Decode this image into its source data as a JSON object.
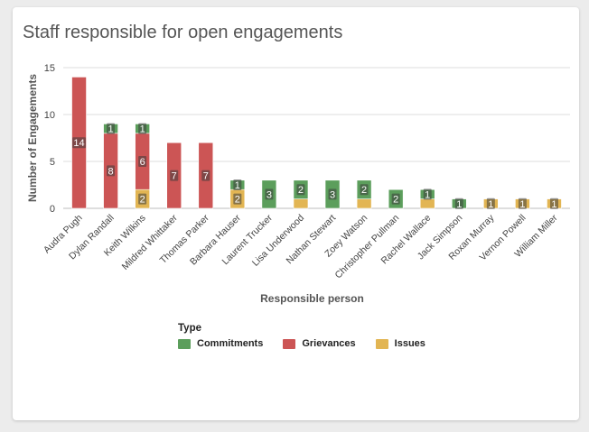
{
  "title": "Staff responsible for open engagements",
  "legend": {
    "title": "Type",
    "items": [
      {
        "label": "Commitments",
        "color": "#5c9e5c"
      },
      {
        "label": "Grievances",
        "color": "#cc5555"
      },
      {
        "label": "Issues",
        "color": "#e2b553"
      }
    ]
  },
  "chart_data": {
    "type": "bar",
    "stacked": true,
    "title": "Staff responsible for open engagements",
    "xlabel": "Responsible person",
    "ylabel": "Number of Engagements",
    "ylim": [
      0,
      15
    ],
    "yticks": [
      0,
      5,
      10,
      15
    ],
    "grid": true,
    "legend_position": "bottom",
    "categories": [
      "Audra Pugh",
      "Dylan Randall",
      "Keith Wilkins",
      "Mildred Whittaker",
      "Thomas Parker",
      "Barbara Hauser",
      "Laurent Trucker",
      "Lisa Underwood",
      "Nathan Stewart",
      "Zoey Watson",
      "Christopher Pullman",
      "Rachel Wallace",
      "Jack Simpson",
      "Roxan Murray",
      "Vernon Powell",
      "William Miller"
    ],
    "series": [
      {
        "name": "Issues",
        "color": "#e2b553",
        "values": [
          0,
          0,
          2,
          0,
          0,
          2,
          0,
          1,
          0,
          1,
          0,
          1,
          0,
          1,
          1,
          1
        ]
      },
      {
        "name": "Grievances",
        "color": "#cc5555",
        "values": [
          14,
          8,
          6,
          7,
          7,
          0,
          0,
          0,
          0,
          0,
          0,
          0,
          0,
          0,
          0,
          0
        ]
      },
      {
        "name": "Commitments",
        "color": "#5c9e5c",
        "values": [
          0,
          1,
          1,
          0,
          0,
          1,
          3,
          2,
          3,
          2,
          2,
          1,
          1,
          0,
          0,
          0
        ]
      }
    ],
    "segment_labels": {
      "Issues": [
        "",
        "",
        "2",
        "",
        "",
        "2",
        "",
        "",
        "",
        "",
        "",
        "",
        "",
        "1",
        "1",
        "1"
      ],
      "Grievances": [
        "14",
        "8",
        "6",
        "7",
        "7",
        "",
        "",
        "",
        "",
        "",
        "",
        "",
        "",
        "",
        "",
        ""
      ],
      "Commitments": [
        "",
        "1",
        "1",
        "",
        "",
        "1",
        "3",
        "2",
        "3",
        "2",
        "2",
        "1",
        "1",
        "",
        "",
        ""
      ]
    }
  }
}
